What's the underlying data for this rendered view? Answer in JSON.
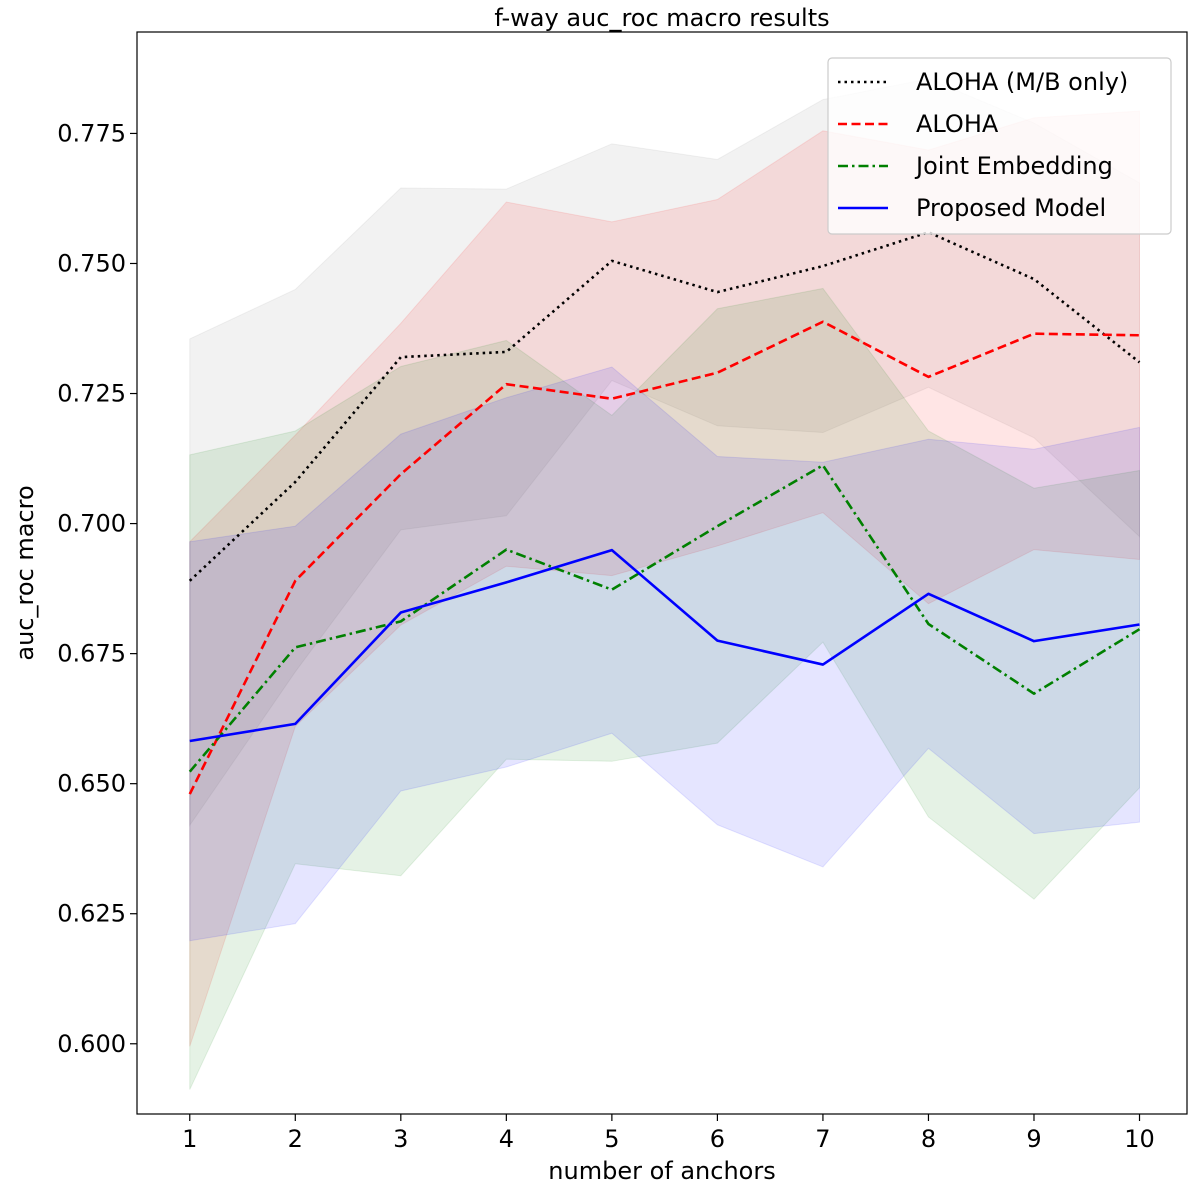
{
  "chart_data": {
    "type": "line",
    "title": "f-way auc_roc macro results",
    "xlabel": "number of anchors",
    "ylabel": "auc_roc macro",
    "x": [
      1,
      2,
      3,
      4,
      5,
      6,
      7,
      8,
      9,
      10
    ],
    "xlim": [
      0.5,
      10.45
    ],
    "ylim": [
      0.5865,
      0.7945
    ],
    "xticks": [
      1,
      2,
      3,
      4,
      5,
      6,
      7,
      8,
      9,
      10
    ],
    "yticks": [
      0.6,
      0.625,
      0.65,
      0.675,
      0.7,
      0.725,
      0.75,
      0.775
    ],
    "ytick_labels": [
      "0.600",
      "0.625",
      "0.650",
      "0.675",
      "0.700",
      "0.725",
      "0.750",
      "0.775"
    ],
    "grid": false,
    "legend_position": "top-right",
    "series": [
      {
        "name": "ALOHA (M/B only)",
        "color": "#000000",
        "linestyle": "dotted",
        "band_color": "#808080",
        "values": [
          0.689,
          0.708,
          0.732,
          0.733,
          0.7505,
          0.7445,
          0.7495,
          0.756,
          0.747,
          0.731
        ],
        "upper": [
          0.7355,
          0.745,
          0.7645,
          0.7643,
          0.773,
          0.77,
          0.7815,
          0.7855,
          0.777,
          0.7655
        ],
        "lower": [
          0.642,
          0.6715,
          0.6988,
          0.7015,
          0.7275,
          0.7188,
          0.7175,
          0.7262,
          0.7165,
          0.6975
        ]
      },
      {
        "name": "ALOHA",
        "color": "#ff0000",
        "linestyle": "dashed",
        "band_color": "#ff0000",
        "values": [
          0.648,
          0.689,
          0.7095,
          0.7268,
          0.724,
          0.729,
          0.7388,
          0.7282,
          0.7365,
          0.7362
        ],
        "upper": [
          0.6965,
          0.717,
          0.7385,
          0.7618,
          0.758,
          0.7623,
          0.7755,
          0.7718,
          0.778,
          0.7793
        ],
        "lower": [
          0.5995,
          0.661,
          0.6805,
          0.6918,
          0.69,
          0.6957,
          0.7021,
          0.6846,
          0.695,
          0.6931
        ]
      },
      {
        "name": "Joint Embedding",
        "color": "#008000",
        "linestyle": "dashdot",
        "band_color": "#008000",
        "values": [
          0.6523,
          0.6762,
          0.6812,
          0.695,
          0.6873,
          0.6995,
          0.7112,
          0.6807,
          0.6673,
          0.6797
        ],
        "upper": [
          0.7132,
          0.7178,
          0.7302,
          0.7352,
          0.7208,
          0.7413,
          0.7452,
          0.7178,
          0.7068,
          0.7102
        ],
        "lower": [
          0.5912,
          0.6346,
          0.6323,
          0.6547,
          0.6543,
          0.6578,
          0.6772,
          0.6436,
          0.6278,
          0.6492
        ]
      },
      {
        "name": "Proposed Model",
        "color": "#0000ff",
        "linestyle": "solid",
        "band_color": "#0000ff",
        "values": [
          0.6582,
          0.6615,
          0.6829,
          0.6887,
          0.6949,
          0.6775,
          0.6729,
          0.6865,
          0.6774,
          0.6806
        ],
        "upper": [
          0.6965,
          0.6995,
          0.7172,
          0.7242,
          0.7301,
          0.7129,
          0.7118,
          0.7162,
          0.7143,
          0.7185
        ],
        "lower": [
          0.6198,
          0.6231,
          0.6486,
          0.6532,
          0.6597,
          0.6421,
          0.634,
          0.6568,
          0.6404,
          0.6426
        ]
      }
    ]
  }
}
